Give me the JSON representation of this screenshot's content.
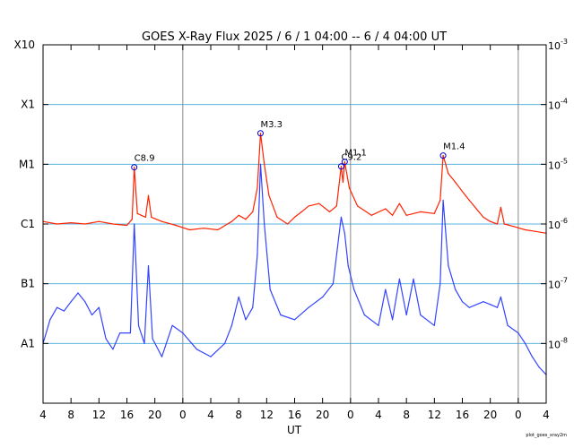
{
  "chart_data": {
    "type": "line",
    "title": "GOES X-Ray Flux   2025 /  6 /  1   04:00 --  6 /  4   04:00   UT",
    "xlabel": "UT",
    "credit": "plot_goes_xray2m",
    "x_start": "2025-06-01T04:00",
    "x_end": "2025-06-04T04:00",
    "x_tick_labels": [
      "4",
      "8",
      "12",
      "16",
      "20",
      "0",
      "4",
      "8",
      "12",
      "16",
      "20",
      "0",
      "4",
      "8",
      "12",
      "16",
      "20",
      "0",
      "4"
    ],
    "day_boundaries": [
      "2025-06-02T00:00",
      "2025-06-03T00:00",
      "2025-06-04T00:00"
    ],
    "y_scale": "log",
    "ylim_wm2": [
      1e-09,
      0.001
    ],
    "y_left_class_labels": [
      "X10",
      "X1",
      "M1",
      "C1",
      "B1",
      "A1"
    ],
    "y_left_class_values": [
      0.001,
      0.0001,
      1e-05,
      1e-06,
      1e-07,
      1e-08
    ],
    "y_right_ticks": [
      {
        "base": "10",
        "exp": "-3",
        "value": 0.001
      },
      {
        "base": "10",
        "exp": "-4",
        "value": 0.0001
      },
      {
        "base": "10",
        "exp": "-5",
        "value": 1e-05
      },
      {
        "base": "10",
        "exp": "-6",
        "value": 1e-06
      },
      {
        "base": "10",
        "exp": "-7",
        "value": 1e-07
      },
      {
        "base": "10",
        "exp": "-8",
        "value": 1e-08
      }
    ],
    "grid": true,
    "colors": {
      "long_channel": "#ff2200",
      "long_channel_secondary": "#ff9900",
      "short_channel": "#3344ff",
      "short_channel_secondary": "#7700bb",
      "grid_line": "#59b5e0",
      "day_line": "#888888",
      "flare_marker": "#0000cc"
    },
    "flares": [
      {
        "label": "C8.9",
        "time": "2025-06-01T17:03",
        "flux": 8.9e-06
      },
      {
        "label": "M3.3",
        "time": "2025-06-02T11:07",
        "flux": 3.3e-05
      },
      {
        "label": "C9.2",
        "time": "2025-06-02T22:40",
        "flux": 9.2e-06
      },
      {
        "label": "M1.1",
        "time": "2025-06-02T23:10",
        "flux": 1.1e-05
      },
      {
        "label": "M1.4",
        "time": "2025-06-03T13:15",
        "flux": 1.4e-05
      }
    ],
    "series": [
      {
        "name": "",
        "channel": "long",
        "color": "#ff2200",
        "points": [
          [
            "2025-06-01T04:00",
            1.1e-06
          ],
          [
            "2025-06-01T06:00",
            1e-06
          ],
          [
            "2025-06-01T08:00",
            1.05e-06
          ],
          [
            "2025-06-01T10:00",
            1e-06
          ],
          [
            "2025-06-01T12:00",
            1.1e-06
          ],
          [
            "2025-06-01T14:00",
            1e-06
          ],
          [
            "2025-06-01T16:00",
            9.5e-07
          ],
          [
            "2025-06-01T16:45",
            1.2e-06
          ],
          [
            "2025-06-01T17:03",
            8.9e-06
          ],
          [
            "2025-06-01T17:30",
            1.5e-06
          ],
          [
            "2025-06-01T18:40",
            1.3e-06
          ],
          [
            "2025-06-01T19:05",
            3e-06
          ],
          [
            "2025-06-01T19:30",
            1.3e-06
          ],
          [
            "2025-06-01T21:00",
            1.1e-06
          ],
          [
            "2025-06-01T23:00",
            9.5e-07
          ],
          [
            "2025-06-02T01:00",
            8e-07
          ],
          [
            "2025-06-02T03:00",
            8.5e-07
          ],
          [
            "2025-06-02T05:00",
            8e-07
          ],
          [
            "2025-06-02T07:00",
            1.1e-06
          ],
          [
            "2025-06-02T08:00",
            1.4e-06
          ],
          [
            "2025-06-02T09:00",
            1.2e-06
          ],
          [
            "2025-06-02T10:00",
            1.6e-06
          ],
          [
            "2025-06-02T10:40",
            4e-06
          ],
          [
            "2025-06-02T11:07",
            3.3e-05
          ],
          [
            "2025-06-02T11:40",
            1e-05
          ],
          [
            "2025-06-02T12:20",
            3e-06
          ],
          [
            "2025-06-02T13:30",
            1.3e-06
          ],
          [
            "2025-06-02T15:00",
            1e-06
          ],
          [
            "2025-06-02T16:00",
            1.3e-06
          ],
          [
            "2025-06-02T17:00",
            1.6e-06
          ],
          [
            "2025-06-02T18:00",
            2e-06
          ],
          [
            "2025-06-02T19:30",
            2.2e-06
          ],
          [
            "2025-06-02T21:00",
            1.6e-06
          ],
          [
            "2025-06-02T22:00",
            2e-06
          ],
          [
            "2025-06-02T22:40",
            9.2e-06
          ],
          [
            "2025-06-02T22:55",
            5e-06
          ],
          [
            "2025-06-02T23:10",
            1.1e-05
          ],
          [
            "2025-06-02T23:50",
            4e-06
          ],
          [
            "2025-06-03T01:00",
            2e-06
          ],
          [
            "2025-06-03T03:00",
            1.4e-06
          ],
          [
            "2025-06-03T05:00",
            1.8e-06
          ],
          [
            "2025-06-03T06:00",
            1.4e-06
          ],
          [
            "2025-06-03T07:00",
            2.2e-06
          ],
          [
            "2025-06-03T08:00",
            1.4e-06
          ],
          [
            "2025-06-03T10:00",
            1.6e-06
          ],
          [
            "2025-06-03T12:00",
            1.5e-06
          ],
          [
            "2025-06-03T12:50",
            2.5e-06
          ],
          [
            "2025-06-03T13:15",
            1.4e-05
          ],
          [
            "2025-06-03T14:00",
            7e-06
          ],
          [
            "2025-06-03T15:00",
            5e-06
          ],
          [
            "2025-06-03T16:00",
            3.5e-06
          ],
          [
            "2025-06-03T17:00",
            2.5e-06
          ],
          [
            "2025-06-03T18:00",
            1.8e-06
          ],
          [
            "2025-06-03T19:00",
            1.3e-06
          ],
          [
            "2025-06-03T20:00",
            1.1e-06
          ],
          [
            "2025-06-03T21:00",
            1e-06
          ],
          [
            "2025-06-03T21:30",
            1.9e-06
          ],
          [
            "2025-06-03T22:00",
            1e-06
          ],
          [
            "2025-06-03T23:30",
            9e-07
          ],
          [
            "2025-06-04T01:00",
            8e-07
          ],
          [
            "2025-06-04T02:30",
            7.5e-07
          ],
          [
            "2025-06-04T04:00",
            7e-07
          ]
        ]
      },
      {
        "name": "",
        "channel": "short",
        "color": "#3344ff",
        "points": [
          [
            "2025-06-01T04:00",
            1e-08
          ],
          [
            "2025-06-01T05:00",
            2.5e-08
          ],
          [
            "2025-06-01T06:00",
            4e-08
          ],
          [
            "2025-06-01T07:00",
            3.5e-08
          ],
          [
            "2025-06-01T08:00",
            5e-08
          ],
          [
            "2025-06-01T09:00",
            7e-08
          ],
          [
            "2025-06-01T10:00",
            5e-08
          ],
          [
            "2025-06-01T11:00",
            3e-08
          ],
          [
            "2025-06-01T12:00",
            4e-08
          ],
          [
            "2025-06-01T13:00",
            1.2e-08
          ],
          [
            "2025-06-01T14:00",
            8e-09
          ],
          [
            "2025-06-01T15:00",
            1.5e-08
          ],
          [
            "2025-06-01T16:30",
            1.5e-08
          ],
          [
            "2025-06-01T17:03",
            1e-06
          ],
          [
            "2025-06-01T17:40",
            2e-08
          ],
          [
            "2025-06-01T18:30",
            1e-08
          ],
          [
            "2025-06-01T19:05",
            2e-07
          ],
          [
            "2025-06-01T19:40",
            1.2e-08
          ],
          [
            "2025-06-01T21:00",
            6e-09
          ],
          [
            "2025-06-01T22:30",
            2e-08
          ],
          [
            "2025-06-02T00:00",
            1.5e-08
          ],
          [
            "2025-06-02T02:00",
            8e-09
          ],
          [
            "2025-06-02T04:00",
            6e-09
          ],
          [
            "2025-06-02T06:00",
            1e-08
          ],
          [
            "2025-06-02T07:00",
            2e-08
          ],
          [
            "2025-06-02T08:00",
            6e-08
          ],
          [
            "2025-06-02T09:00",
            2.5e-08
          ],
          [
            "2025-06-02T10:00",
            4e-08
          ],
          [
            "2025-06-02T10:40",
            3e-07
          ],
          [
            "2025-06-02T11:07",
            1e-05
          ],
          [
            "2025-06-02T11:40",
            1e-06
          ],
          [
            "2025-06-02T12:30",
            8e-08
          ],
          [
            "2025-06-02T14:00",
            3e-08
          ],
          [
            "2025-06-02T16:00",
            2.5e-08
          ],
          [
            "2025-06-02T18:00",
            4e-08
          ],
          [
            "2025-06-02T20:00",
            6e-08
          ],
          [
            "2025-06-02T21:30",
            1e-07
          ],
          [
            "2025-06-02T22:40",
            1.3e-06
          ],
          [
            "2025-06-02T23:10",
            7e-07
          ],
          [
            "2025-06-02T23:40",
            2e-07
          ],
          [
            "2025-06-03T00:30",
            8e-08
          ],
          [
            "2025-06-03T02:00",
            3e-08
          ],
          [
            "2025-06-03T04:00",
            2e-08
          ],
          [
            "2025-06-03T05:00",
            8e-08
          ],
          [
            "2025-06-03T06:00",
            2.5e-08
          ],
          [
            "2025-06-03T07:00",
            1.2e-07
          ],
          [
            "2025-06-03T08:00",
            3e-08
          ],
          [
            "2025-06-03T09:00",
            1.2e-07
          ],
          [
            "2025-06-03T10:00",
            3e-08
          ],
          [
            "2025-06-03T12:00",
            2e-08
          ],
          [
            "2025-06-03T12:50",
            1e-07
          ],
          [
            "2025-06-03T13:15",
            2.5e-06
          ],
          [
            "2025-06-03T14:00",
            2e-07
          ],
          [
            "2025-06-03T15:00",
            8e-08
          ],
          [
            "2025-06-03T16:00",
            5e-08
          ],
          [
            "2025-06-03T17:00",
            4e-08
          ],
          [
            "2025-06-03T19:00",
            5e-08
          ],
          [
            "2025-06-03T20:00",
            4.5e-08
          ],
          [
            "2025-06-03T21:00",
            4e-08
          ],
          [
            "2025-06-03T21:30",
            6e-08
          ],
          [
            "2025-06-03T22:30",
            2e-08
          ],
          [
            "2025-06-04T00:00",
            1.5e-08
          ],
          [
            "2025-06-04T01:00",
            1e-08
          ],
          [
            "2025-06-04T02:00",
            6e-09
          ],
          [
            "2025-06-04T03:00",
            4e-09
          ],
          [
            "2025-06-04T04:00",
            3e-09
          ]
        ]
      }
    ]
  }
}
